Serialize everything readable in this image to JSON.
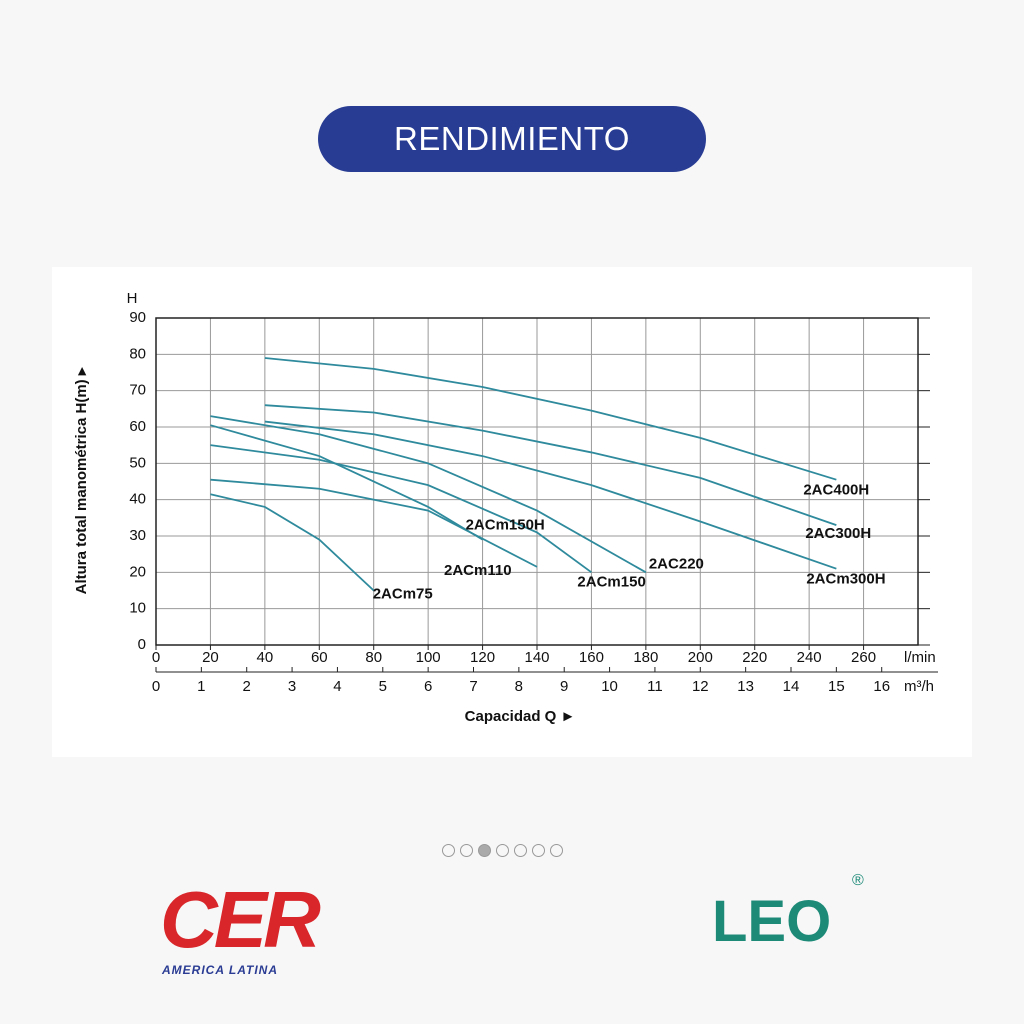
{
  "header": {
    "title": "RENDIMIENTO"
  },
  "chart_data": {
    "type": "line",
    "y_label": "Altura total manométrica H(m) ▸",
    "y_unit": "H",
    "x_label": "Capacidad Q ►",
    "x_unit": "l/min",
    "x2_unit": "m³/h",
    "xlim": [
      0,
      280
    ],
    "xticks": [
      0,
      20,
      40,
      60,
      80,
      100,
      120,
      140,
      160,
      180,
      200,
      220,
      240,
      260
    ],
    "x2lim": [
      0,
      16.8
    ],
    "x2ticks": [
      0,
      1,
      2,
      3,
      4,
      5,
      6,
      7,
      8,
      9,
      10,
      11,
      12,
      13,
      14,
      15,
      16
    ],
    "ylim": [
      0,
      90
    ],
    "yticks": [
      0,
      10,
      20,
      30,
      40,
      50,
      60,
      70,
      80,
      90
    ],
    "grid": true,
    "color": "#2e8a9c",
    "series": [
      {
        "name": "2AC400H",
        "x": [
          40,
          80,
          120,
          160,
          200,
          250
        ],
        "values": [
          79,
          76,
          71,
          64.5,
          57,
          45.5
        ]
      },
      {
        "name": "2AC300H",
        "x": [
          40,
          80,
          120,
          160,
          200,
          250
        ],
        "values": [
          66,
          64,
          59,
          53,
          46,
          33
        ]
      },
      {
        "name": "2ACm300H",
        "x": [
          40,
          80,
          120,
          160,
          200,
          250
        ],
        "values": [
          61.5,
          58,
          52,
          44,
          34,
          21
        ]
      },
      {
        "name": "2AC220",
        "x": [
          20,
          60,
          100,
          140,
          180
        ],
        "values": [
          63,
          58,
          50,
          37,
          20
        ]
      },
      {
        "name": "2ACm150",
        "x": [
          20,
          60,
          100,
          140,
          160
        ],
        "values": [
          55,
          51,
          44,
          31,
          20
        ]
      },
      {
        "name": "2ACm150H",
        "x": [
          20,
          60,
          100,
          120
        ],
        "values": [
          60.5,
          52,
          38,
          29
        ]
      },
      {
        "name": "2ACm110",
        "x": [
          20,
          60,
          100,
          140
        ],
        "values": [
          45.5,
          43,
          37,
          21.5
        ]
      },
      {
        "name": "2ACm75",
        "x": [
          20,
          40,
          60,
          80
        ],
        "values": [
          41.5,
          38,
          29,
          15
        ]
      }
    ]
  },
  "logos": {
    "left": "CER",
    "left_sub": "AMERICA LATINA",
    "right": "LEO",
    "right_mark": "®"
  }
}
